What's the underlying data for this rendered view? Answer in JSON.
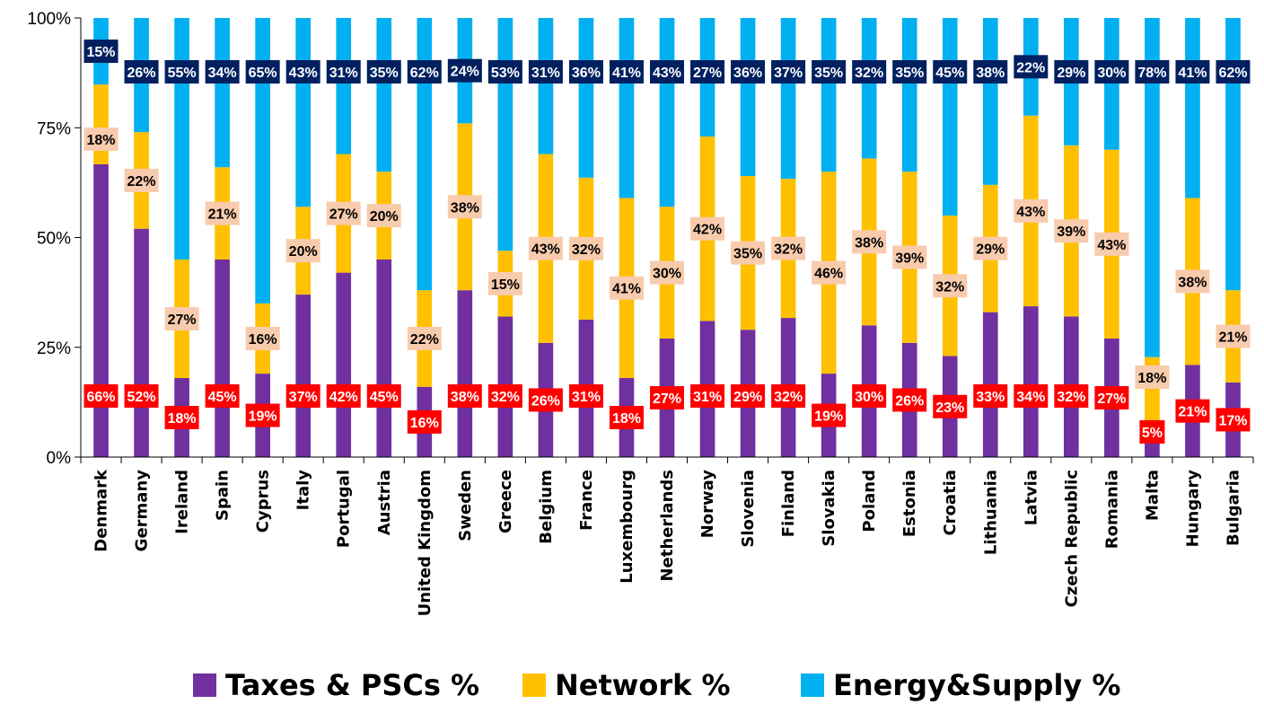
{
  "chart_data": {
    "type": "bar",
    "stacked": true,
    "percent_stacked": true,
    "title": "",
    "xlabel": "",
    "ylabel": "",
    "ylim": [
      0,
      100
    ],
    "y_ticks": [
      "0%",
      "25%",
      "50%",
      "75%",
      "100%"
    ],
    "grid": false,
    "legend_position": "bottom",
    "categories": [
      "Denmark",
      "Germany",
      "Ireland",
      "Spain",
      "Cyprus",
      "Italy",
      "Portugal",
      "Austria",
      "United Kingdom",
      "Sweden",
      "Greece",
      "Belgium",
      "France",
      "Luxembourg",
      "Netherlands",
      "Norway",
      "Slovenia",
      "Finland",
      "Slovakia",
      "Poland",
      "Estonia",
      "Croatia",
      "Lithuania",
      "Latvia",
      "Czech Republic",
      "Romania",
      "Malta",
      "Hungary",
      "Bulgaria"
    ],
    "series": [
      {
        "name": "Taxes & PSCs %",
        "color": "#7030A0",
        "label_bg": "#FF0000",
        "label_color": "#FFFFFF",
        "values": [
          66,
          52,
          18,
          45,
          19,
          37,
          42,
          45,
          16,
          38,
          32,
          26,
          31,
          18,
          27,
          31,
          29,
          32,
          19,
          30,
          26,
          23,
          33,
          34,
          32,
          27,
          5,
          21,
          17
        ],
        "labels": [
          "66%",
          "52%",
          "18%",
          "45%",
          "19%",
          "37%",
          "42%",
          "45%",
          "16%",
          "38%",
          "32%",
          "26%",
          "31%",
          "18%",
          "27%",
          "31%",
          "29%",
          "32%",
          "19%",
          "30%",
          "26%",
          "23%",
          "33%",
          "34%",
          "32%",
          "27%",
          "5%",
          "21%",
          "17%"
        ]
      },
      {
        "name": "Network %",
        "color": "#FFC000",
        "label_bg": "#F8CBAD",
        "label_color": "#000000",
        "values": [
          18,
          22,
          27,
          21,
          16,
          20,
          27,
          20,
          22,
          38,
          15,
          43,
          32,
          41,
          30,
          42,
          35,
          32,
          46,
          38,
          39,
          32,
          29,
          43,
          39,
          43,
          18,
          38,
          21
        ],
        "labels": [
          "18%",
          "22%",
          "27%",
          "21%",
          "16%",
          "20%",
          "27%",
          "20%",
          "22%",
          "38%",
          "15%",
          "43%",
          "32%",
          "41%",
          "30%",
          "42%",
          "35%",
          "32%",
          "46%",
          "38%",
          "39%",
          "32%",
          "29%",
          "43%",
          "39%",
          "43%",
          "18%",
          "38%",
          "21%"
        ]
      },
      {
        "name": "Energy&Supply %",
        "color": "#00B0F0",
        "label_bg": "#002060",
        "label_color": "#FFFFFF",
        "values": [
          15,
          26,
          55,
          34,
          65,
          43,
          31,
          35,
          62,
          24,
          53,
          31,
          36,
          41,
          43,
          27,
          36,
          37,
          35,
          32,
          35,
          45,
          38,
          22,
          29,
          30,
          78,
          41,
          62
        ],
        "labels": [
          "15%",
          "26%",
          "55%",
          "34%",
          "65%",
          "43%",
          "31%",
          "35%",
          "62%",
          "24%",
          "53%",
          "31%",
          "36%",
          "41%",
          "43%",
          "27%",
          "36%",
          "37%",
          "35%",
          "32%",
          "35%",
          "45%",
          "38%",
          "22%",
          "29%",
          "30%",
          "78%",
          "41%",
          "62%"
        ]
      }
    ]
  }
}
